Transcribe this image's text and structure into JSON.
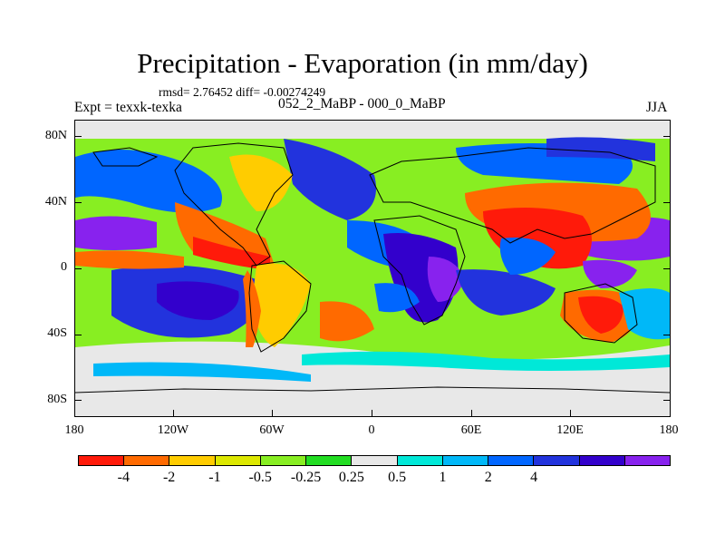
{
  "title": "Precipitation - Evaporation (in mm/day)",
  "stats": "rmsd= 2.76452 diff= -0.00274249",
  "experiment_label": "Expt = texxk-texka",
  "experiments": "052_2_MaBP - 000_0_MaBP",
  "season": "JJA",
  "lat_labels": [
    "80N",
    "40N",
    "0",
    "40S",
    "80S"
  ],
  "lon_labels": [
    "180",
    "120W",
    "60W",
    "0",
    "60E",
    "120E",
    "180"
  ],
  "colorbar": {
    "colors": [
      "#ff1a0a",
      "#ff6a00",
      "#ffcc00",
      "#dde800",
      "#88ee22",
      "#22dd22",
      "#e8e8e8",
      "#00e8d8",
      "#00b8f8",
      "#0066ff",
      "#2233dd",
      "#3300cc",
      "#8822ee"
    ],
    "labels": [
      "-4",
      "-2",
      "-1",
      "-0.5",
      "-0.25",
      "0.25",
      "0.5",
      "1",
      "2",
      "4"
    ]
  },
  "colors": {
    "ocean_base": "#88ee22",
    "land_line": "#000000",
    "background": "#ffffff"
  }
}
